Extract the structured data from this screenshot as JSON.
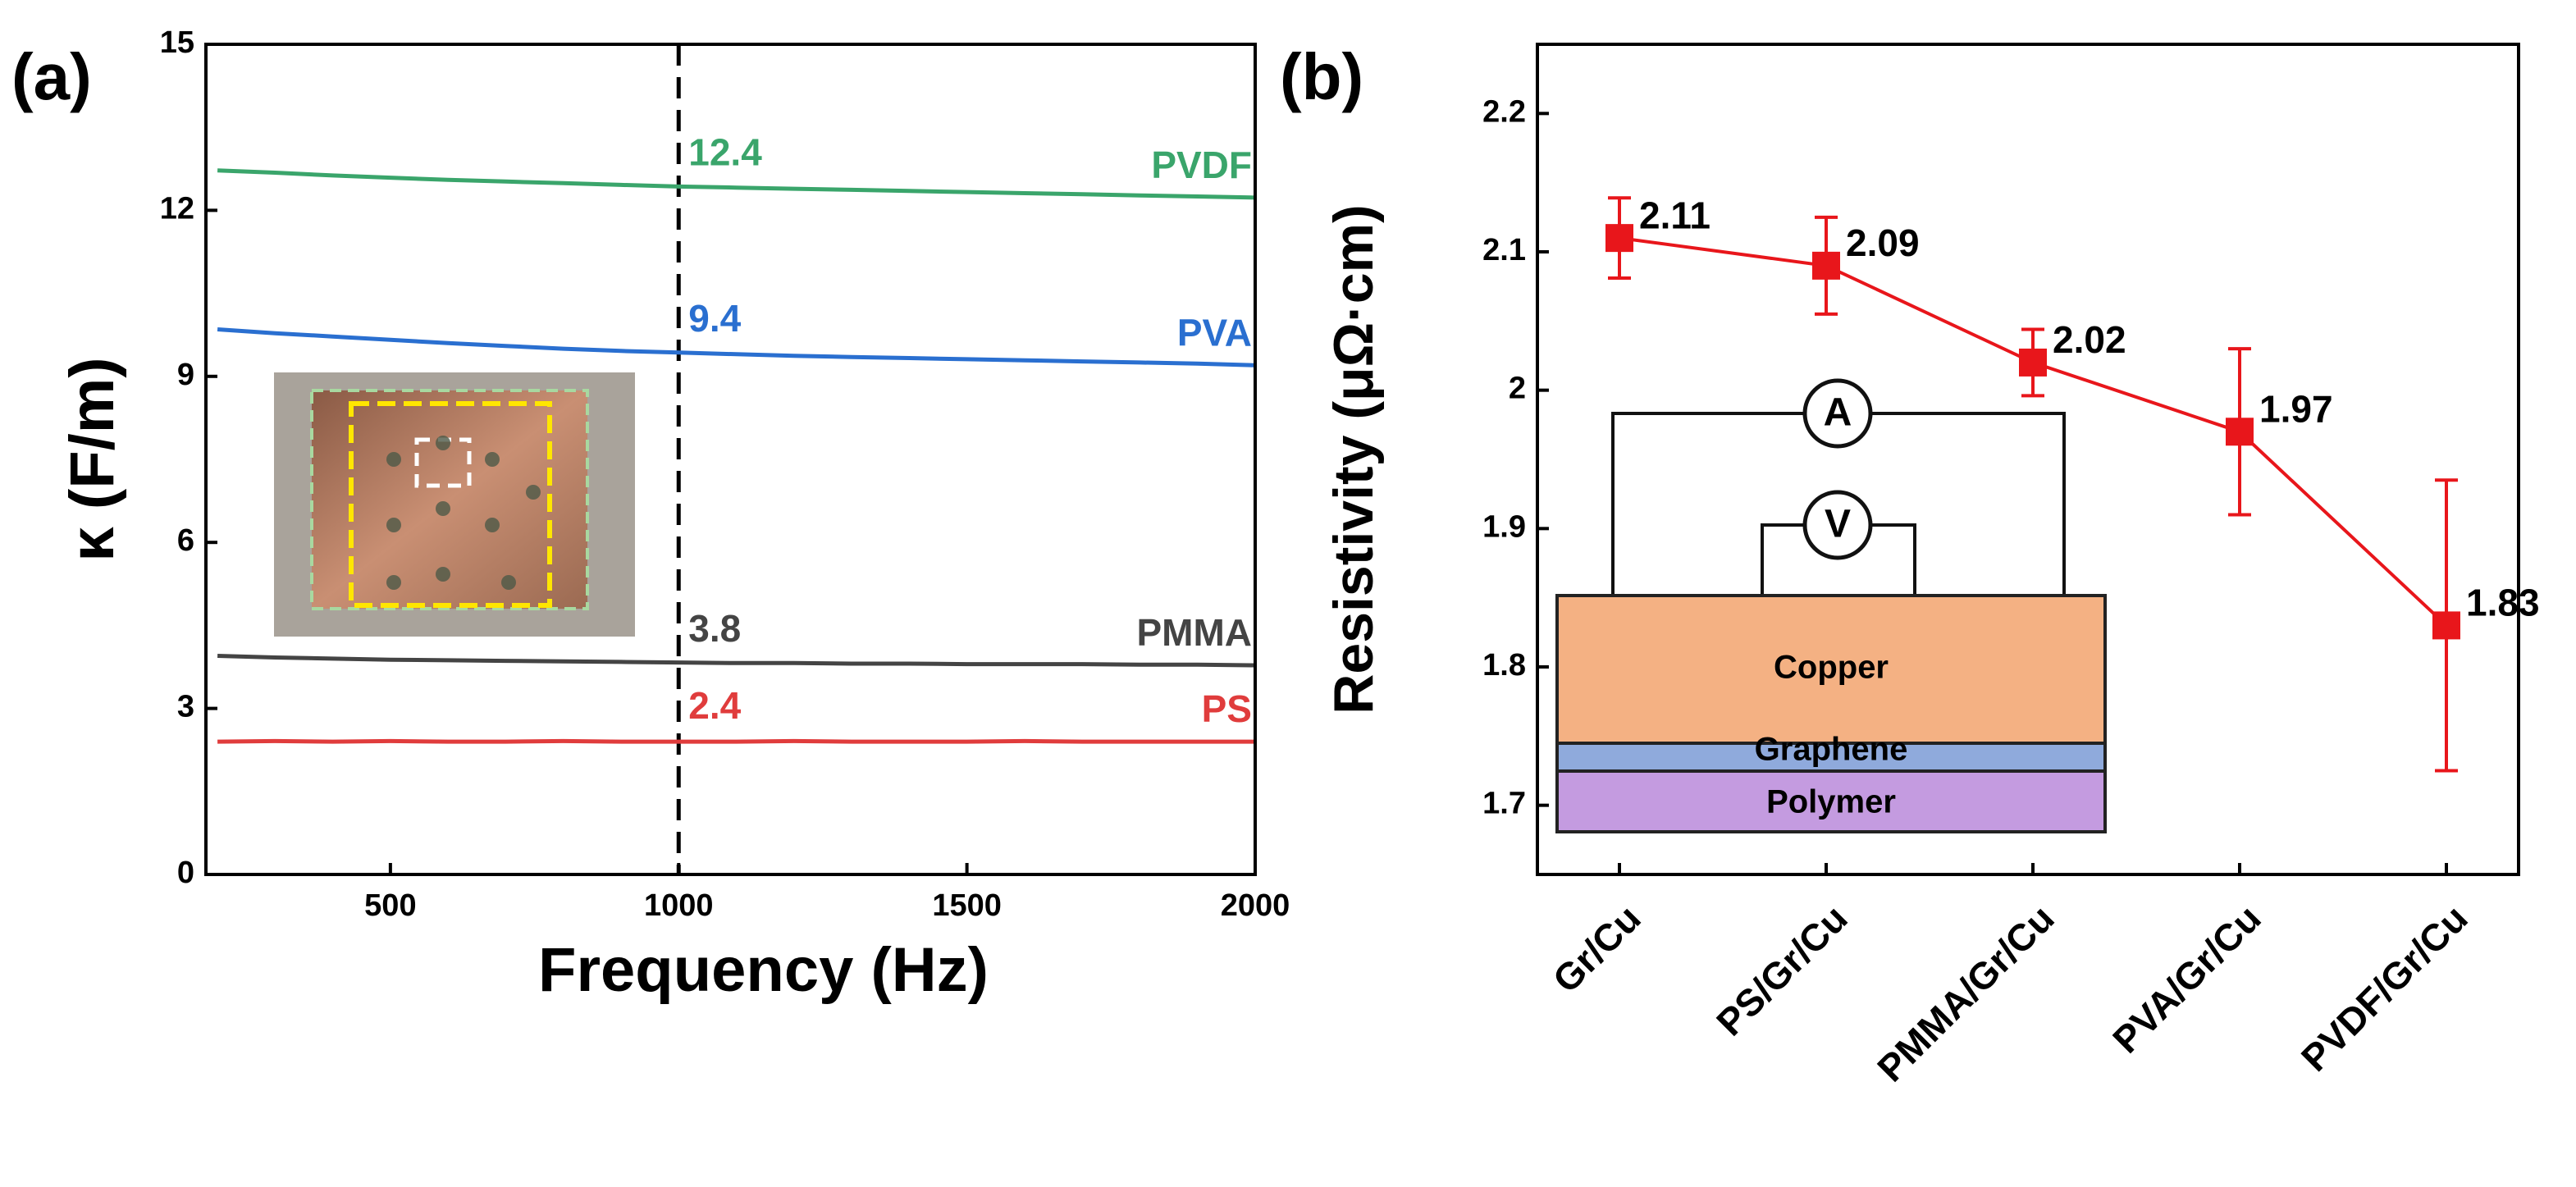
{
  "chart_data": [
    {
      "type": "line",
      "panel": "(a)",
      "xlabel": "Frequency (Hz)",
      "ylabel": "κ (F/m)",
      "x": [
        200,
        300,
        400,
        500,
        600,
        700,
        800,
        900,
        1000,
        1100,
        1200,
        1300,
        1400,
        1500,
        1600,
        1700,
        1800,
        1900,
        2000
      ],
      "xlim": [
        180,
        2000
      ],
      "xticks": [
        500,
        1000,
        1500,
        2000
      ],
      "ylim": [
        0,
        15
      ],
      "yticks": [
        0,
        3,
        6,
        9,
        12,
        15
      ],
      "vline_x": 1000,
      "series": [
        {
          "name": "PVDF",
          "color": "#3aa56b",
          "value_at_vline": 12.4,
          "values": [
            12.72,
            12.68,
            12.63,
            12.59,
            12.55,
            12.52,
            12.49,
            12.46,
            12.43,
            12.41,
            12.39,
            12.37,
            12.35,
            12.33,
            12.31,
            12.29,
            12.27,
            12.25,
            12.23
          ]
        },
        {
          "name": "PVA",
          "color": "#2a6fd0",
          "value_at_vline": 9.4,
          "values": [
            9.85,
            9.78,
            9.72,
            9.66,
            9.6,
            9.55,
            9.5,
            9.46,
            9.43,
            9.4,
            9.37,
            9.35,
            9.33,
            9.31,
            9.29,
            9.27,
            9.25,
            9.23,
            9.2
          ]
        },
        {
          "name": "PMMA",
          "color": "#444444",
          "value_at_vline": 3.8,
          "values": [
            3.95,
            3.92,
            3.9,
            3.88,
            3.87,
            3.86,
            3.85,
            3.84,
            3.83,
            3.82,
            3.82,
            3.81,
            3.81,
            3.8,
            3.8,
            3.8,
            3.79,
            3.79,
            3.78
          ]
        },
        {
          "name": "PS",
          "color": "#e03c3c",
          "value_at_vline": 2.4,
          "values": [
            2.4,
            2.41,
            2.4,
            2.41,
            2.4,
            2.4,
            2.41,
            2.4,
            2.4,
            2.4,
            2.41,
            2.4,
            2.4,
            2.4,
            2.41,
            2.4,
            2.4,
            2.4,
            2.4
          ]
        }
      ]
    },
    {
      "type": "errorline",
      "panel": "(b)",
      "ylabel": "Resistivity (μΩ·cm)",
      "color": "#e8161b",
      "categories": [
        "Gr/Cu",
        "PS/Gr/Cu",
        "PMMA/Gr/Cu",
        "PVA/Gr/Cu",
        "PVDF/Gr/Cu"
      ],
      "values": [
        2.11,
        2.09,
        2.02,
        1.97,
        1.83
      ],
      "errors": [
        0.029,
        0.035,
        0.024,
        0.06,
        0.105
      ],
      "ylim": [
        1.65,
        2.25
      ],
      "yticks": [
        1.7,
        1.8,
        1.9,
        2.0,
        2.1,
        2.2
      ],
      "inset": {
        "layers": [
          "Copper",
          "Graphene",
          "Polymer"
        ],
        "meters": [
          "A",
          "V"
        ]
      }
    }
  ]
}
